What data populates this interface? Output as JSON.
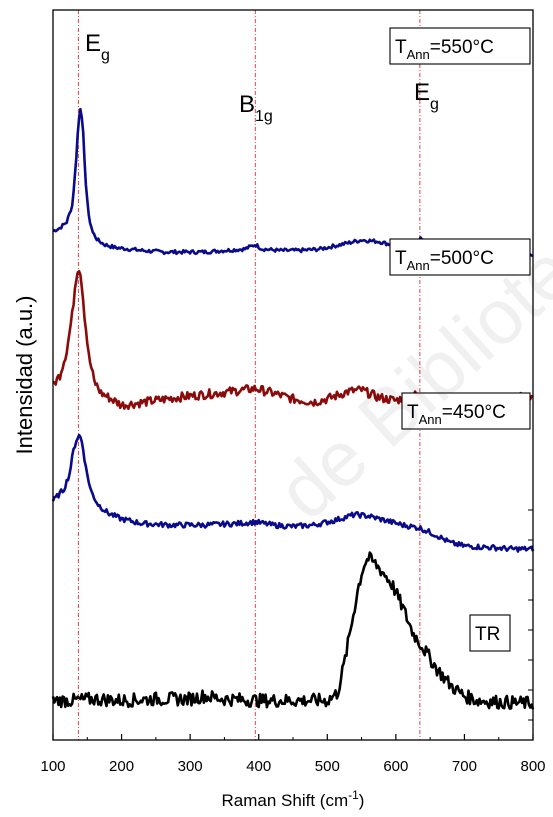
{
  "watermark": "de Biblioteca",
  "chart_data": {
    "type": "line",
    "xlabel_parts": [
      "Raman Shift (cm",
      "-1",
      ")"
    ],
    "ylabel": "Intensidad (a.u.)",
    "xlim": [
      100,
      800
    ],
    "xticks": [
      100,
      200,
      300,
      400,
      500,
      600,
      700,
      800
    ],
    "vlines": [
      137,
      395,
      635
    ],
    "peak_labels": [
      {
        "base": "E",
        "sub": "g",
        "x": 137
      },
      {
        "base": "B",
        "sub": "1g",
        "x": 395
      },
      {
        "base": "E",
        "sub": "g",
        "x": 635
      }
    ],
    "series": [
      {
        "label_parts": [
          "T",
          "Ann",
          "=550°C"
        ],
        "color": "#0a0a8c",
        "offset": 3.0,
        "points": [
          [
            100,
            0.18
          ],
          [
            110,
            0.2
          ],
          [
            120,
            0.24
          ],
          [
            128,
            0.35
          ],
          [
            133,
            0.6
          ],
          [
            137,
            0.9
          ],
          [
            140,
            1.0
          ],
          [
            143,
            0.92
          ],
          [
            147,
            0.55
          ],
          [
            152,
            0.28
          ],
          [
            158,
            0.17
          ],
          [
            165,
            0.12
          ],
          [
            175,
            0.09
          ],
          [
            190,
            0.07
          ],
          [
            210,
            0.06
          ],
          [
            230,
            0.05
          ],
          [
            260,
            0.04
          ],
          [
            290,
            0.04
          ],
          [
            320,
            0.04
          ],
          [
            350,
            0.05
          ],
          [
            380,
            0.06
          ],
          [
            395,
            0.09
          ],
          [
            405,
            0.06
          ],
          [
            430,
            0.05
          ],
          [
            460,
            0.05
          ],
          [
            490,
            0.06
          ],
          [
            520,
            0.09
          ],
          [
            550,
            0.12
          ],
          [
            575,
            0.11
          ],
          [
            600,
            0.08
          ],
          [
            620,
            0.07
          ],
          [
            635,
            0.13
          ],
          [
            645,
            0.1
          ],
          [
            660,
            0.05
          ],
          [
            680,
            0.04
          ],
          [
            700,
            0.03
          ],
          [
            730,
            0.03
          ],
          [
            760,
            0.02
          ],
          [
            800,
            0.02
          ]
        ]
      },
      {
        "label_parts": [
          "T",
          "Ann",
          "=500°C"
        ],
        "color": "#8b0a0a",
        "offset": 2.0,
        "points": [
          [
            100,
            0.15
          ],
          [
            110,
            0.22
          ],
          [
            120,
            0.38
          ],
          [
            128,
            0.62
          ],
          [
            133,
            0.85
          ],
          [
            137,
            0.95
          ],
          [
            141,
            0.88
          ],
          [
            146,
            0.62
          ],
          [
            152,
            0.35
          ],
          [
            160,
            0.18
          ],
          [
            170,
            0.1
          ],
          [
            185,
            0.06
          ],
          [
            200,
            0.02
          ],
          [
            220,
            0.03
          ],
          [
            250,
            0.05
          ],
          [
            280,
            0.07
          ],
          [
            320,
            0.09
          ],
          [
            360,
            0.11
          ],
          [
            395,
            0.13
          ],
          [
            420,
            0.1
          ],
          [
            450,
            0.06
          ],
          [
            480,
            0.04
          ],
          [
            500,
            0.06
          ],
          [
            530,
            0.11
          ],
          [
            550,
            0.12
          ],
          [
            575,
            0.07
          ],
          [
            600,
            0.05
          ],
          [
            625,
            0.09
          ],
          [
            645,
            0.06
          ],
          [
            670,
            0.02
          ],
          [
            690,
            0.01
          ],
          [
            710,
            0.03
          ],
          [
            740,
            0.05
          ],
          [
            770,
            0.07
          ],
          [
            800,
            0.08
          ]
        ]
      },
      {
        "label_parts": [
          "T",
          "Ann",
          "=450°C"
        ],
        "color": "#0a0a8c",
        "offset": 1.0,
        "points": [
          [
            100,
            0.38
          ],
          [
            108,
            0.42
          ],
          [
            116,
            0.46
          ],
          [
            124,
            0.56
          ],
          [
            130,
            0.72
          ],
          [
            135,
            0.8
          ],
          [
            139,
            0.82
          ],
          [
            143,
            0.76
          ],
          [
            148,
            0.6
          ],
          [
            155,
            0.45
          ],
          [
            165,
            0.36
          ],
          [
            180,
            0.3
          ],
          [
            200,
            0.26
          ],
          [
            230,
            0.23
          ],
          [
            270,
            0.22
          ],
          [
            320,
            0.22
          ],
          [
            370,
            0.23
          ],
          [
            395,
            0.24
          ],
          [
            420,
            0.22
          ],
          [
            450,
            0.21
          ],
          [
            480,
            0.22
          ],
          [
            510,
            0.25
          ],
          [
            540,
            0.29
          ],
          [
            560,
            0.28
          ],
          [
            585,
            0.25
          ],
          [
            610,
            0.22
          ],
          [
            635,
            0.2
          ],
          [
            660,
            0.15
          ],
          [
            680,
            0.1
          ],
          [
            700,
            0.08
          ],
          [
            740,
            0.07
          ],
          [
            770,
            0.06
          ],
          [
            800,
            0.06
          ]
        ]
      },
      {
        "label_parts": [
          "TR"
        ],
        "color": "#000000",
        "offset": 0.0,
        "points": [
          [
            100,
            0.05
          ],
          [
            130,
            0.05
          ],
          [
            160,
            0.06
          ],
          [
            200,
            0.05
          ],
          [
            250,
            0.06
          ],
          [
            300,
            0.06
          ],
          [
            320,
            0.08
          ],
          [
            350,
            0.06
          ],
          [
            400,
            0.05
          ],
          [
            450,
            0.05
          ],
          [
            500,
            0.05
          ],
          [
            515,
            0.1
          ],
          [
            525,
            0.3
          ],
          [
            535,
            0.55
          ],
          [
            545,
            0.8
          ],
          [
            553,
            0.95
          ],
          [
            560,
            1.0
          ],
          [
            570,
            0.96
          ],
          [
            582,
            0.9
          ],
          [
            595,
            0.82
          ],
          [
            610,
            0.67
          ],
          [
            625,
            0.5
          ],
          [
            640,
            0.4
          ],
          [
            660,
            0.26
          ],
          [
            680,
            0.15
          ],
          [
            700,
            0.08
          ],
          [
            720,
            0.05
          ],
          [
            750,
            0.04
          ],
          [
            800,
            0.03
          ]
        ]
      }
    ]
  }
}
